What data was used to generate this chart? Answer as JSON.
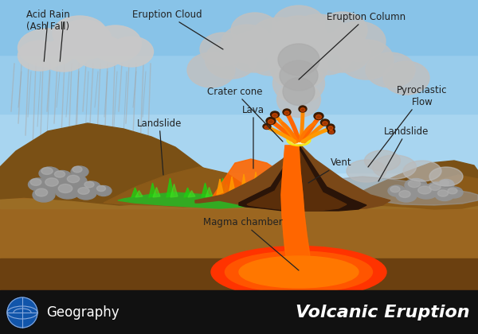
{
  "title": "Volcanic Eruption",
  "subtitle": "Geography",
  "sky_top": "#A8DEFF",
  "sky_bottom": "#D0EEFF",
  "ground_brown": "#8B5E1A",
  "ground_dark_brown": "#5C3A0A",
  "ground_tan": "#A07828",
  "volcano_outer": "#7B4A18",
  "volcano_inner": "#3D2008",
  "lava_orange": "#FF6600",
  "lava_yellow": "#FFAA00",
  "lava_bright": "#FF8800",
  "green_flow": "#44AA22",
  "magma_red": "#FF3300",
  "ash_gray": "#BBBBBB",
  "cloud_light": "#D5D5D5",
  "cloud_dark": "#AAAAAA",
  "footer_bg": "#111111",
  "label_color": "#222222",
  "labels": {
    "acid_rain": "Acid Rain\n(Ash Fall)",
    "eruption_cloud": "Eruption Cloud",
    "eruption_column": "Eruption Column",
    "crater_cone": "Crater cone",
    "lava": "Lava",
    "landslide_left": "Landslide",
    "landslide_right": "Landslide",
    "pyroclastic": "Pyroclastic\nFlow",
    "vent": "Vent",
    "magma_chamber": "Magma chamber"
  }
}
